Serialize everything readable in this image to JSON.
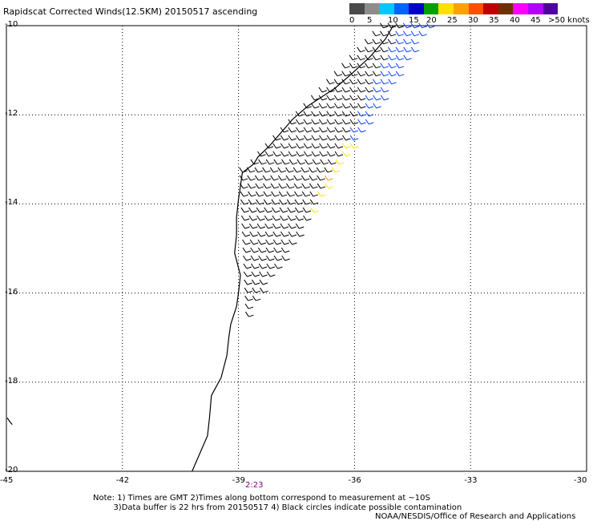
{
  "title": "Rapidscat Corrected Winds(12.5KM) 20150517 ascending",
  "colorbar": {
    "labels": [
      "0",
      "5",
      "10",
      "15",
      "20",
      "25",
      "30",
      "35",
      "40",
      "45",
      ">50 knots"
    ],
    "colors": [
      "#4a4a4a",
      "#8c8c8c",
      "#00c8ff",
      "#0064ff",
      "#0000c8",
      "#00a000",
      "#ffe000",
      "#ffa000",
      "#ff5000",
      "#c00000",
      "#6e3000",
      "#ff00ff",
      "#b400ff",
      "#5000a0"
    ]
  },
  "axes": {
    "x_ticks": [
      "-45",
      "-42",
      "-39",
      "-36",
      "-33",
      "-30"
    ],
    "y_ticks": [
      "-10",
      "-12",
      "-14",
      "-16",
      "-18",
      "-20"
    ]
  },
  "time_label": "2:23",
  "notes": {
    "line1": "Note: 1) Times are GMT 2)Times along bottom correspond to measurement at ~10S",
    "line2": "3)Data buffer is 22 hrs from 20150517 4) Black circles indicate possible contamination"
  },
  "credit": "NOAA/NESDIS/Office of Research and Applications",
  "map": {
    "lon_range": [
      -45,
      -30
    ],
    "lat_range": [
      -20,
      -10
    ],
    "coast_color": "#000000",
    "swath_colors": {
      "calm": "#000000",
      "light_blue": "#00c8ff",
      "blue": "#0040ff",
      "green": "#00b000",
      "yellow": "#ffe000",
      "orange": "#ff9000"
    }
  }
}
